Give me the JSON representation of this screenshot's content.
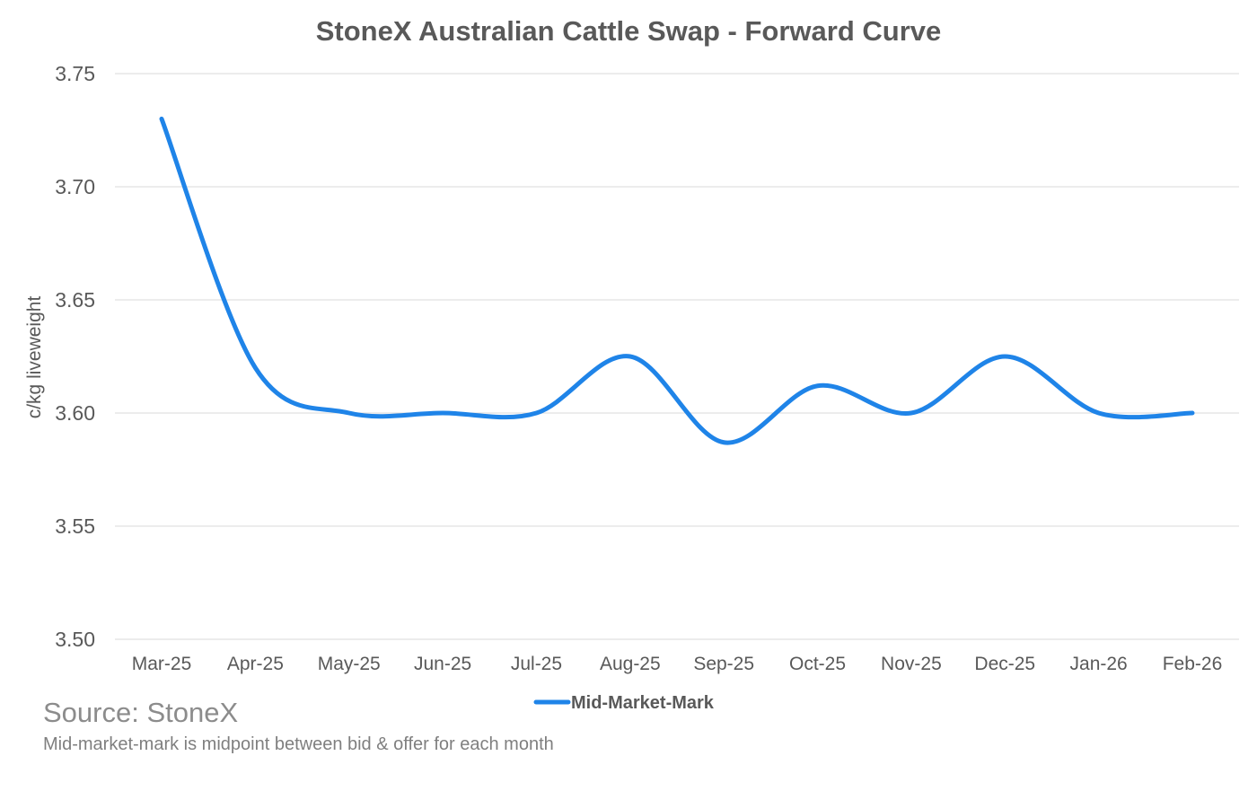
{
  "chart_data": {
    "type": "line",
    "title": "StoneX Australian Cattle Swap - Forward Curve",
    "xlabel": "",
    "ylabel": "c/kg liveweight",
    "categories": [
      "Mar-25",
      "Apr-25",
      "May-25",
      "Jun-25",
      "Jul-25",
      "Aug-25",
      "Sep-25",
      "Oct-25",
      "Nov-25",
      "Dec-25",
      "Jan-26",
      "Feb-26"
    ],
    "series": [
      {
        "name": "Mid-Market-Mark",
        "values": [
          3.73,
          3.62,
          3.6,
          3.6,
          3.6,
          3.625,
          3.587,
          3.612,
          3.6,
          3.625,
          3.6,
          3.6
        ],
        "color": "#1f84e8",
        "smooth": true
      }
    ],
    "ylim": [
      3.5,
      3.75
    ],
    "yticks": [
      "3.50",
      "3.55",
      "3.60",
      "3.65",
      "3.70",
      "3.75"
    ],
    "grid": true,
    "legend_position": "bottom"
  },
  "footer": {
    "source": "Source: StoneX",
    "note": "Mid-market-mark is midpoint between bid & offer for each month"
  }
}
